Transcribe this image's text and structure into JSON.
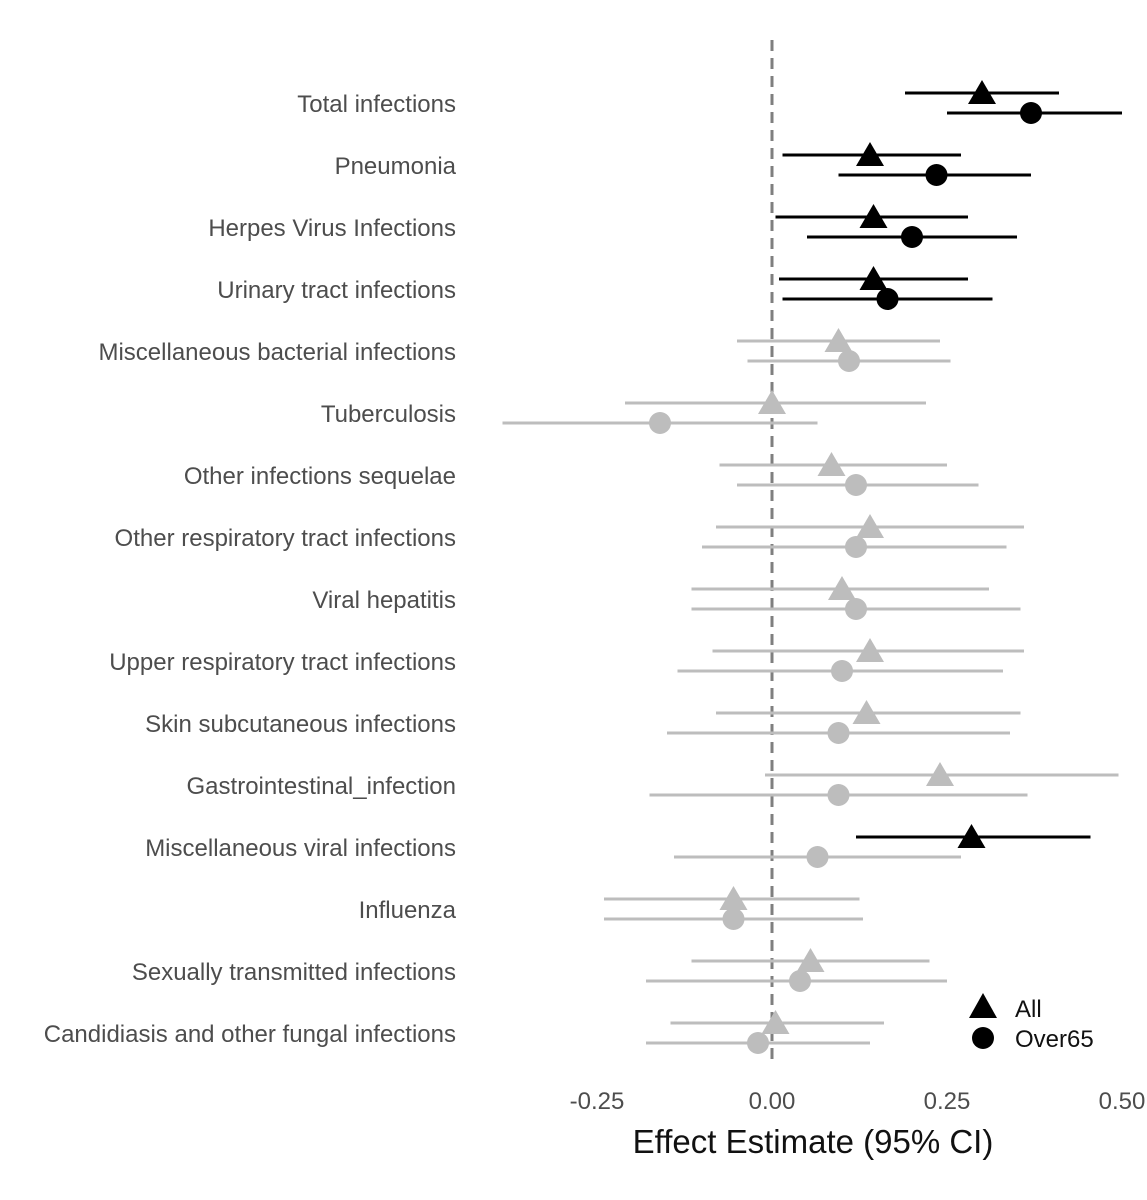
{
  "chart_data": {
    "type": "forest",
    "title": "",
    "xlabel": "Effect Estimate (95% CI)",
    "ylabel": "",
    "xlim": [
      -0.385,
      0.505
    ],
    "xticks": [
      -0.25,
      0.0,
      0.25,
      0.5
    ],
    "xtick_labels": [
      "-0.25",
      "0.00",
      "0.25",
      "0.50"
    ],
    "reference_line": 0,
    "grid": false,
    "legend_position": "bottom-right",
    "colors": {
      "significant": "#000000",
      "non_significant": "#bdbdbd",
      "reference_line": "#7f7f7f"
    },
    "series": [
      {
        "name": "All",
        "marker": "triangle"
      },
      {
        "name": "Over65",
        "marker": "circle"
      }
    ],
    "categories": [
      {
        "label": "Total infections",
        "All": {
          "estimate": 0.3,
          "lower": 0.19,
          "upper": 0.41,
          "significant": true
        },
        "Over65": {
          "estimate": 0.37,
          "lower": 0.25,
          "upper": 0.5,
          "significant": true
        }
      },
      {
        "label": "Pneumonia",
        "All": {
          "estimate": 0.14,
          "lower": 0.015,
          "upper": 0.27,
          "significant": true
        },
        "Over65": {
          "estimate": 0.235,
          "lower": 0.095,
          "upper": 0.37,
          "significant": true
        }
      },
      {
        "label": "Herpes Virus Infections",
        "All": {
          "estimate": 0.145,
          "lower": 0.005,
          "upper": 0.28,
          "significant": true
        },
        "Over65": {
          "estimate": 0.2,
          "lower": 0.05,
          "upper": 0.35,
          "significant": true
        }
      },
      {
        "label": "Urinary tract infections",
        "All": {
          "estimate": 0.145,
          "lower": 0.01,
          "upper": 0.28,
          "significant": true
        },
        "Over65": {
          "estimate": 0.165,
          "lower": 0.015,
          "upper": 0.315,
          "significant": true
        }
      },
      {
        "label": "Miscellaneous bacterial infections",
        "All": {
          "estimate": 0.095,
          "lower": -0.05,
          "upper": 0.24,
          "significant": false
        },
        "Over65": {
          "estimate": 0.11,
          "lower": -0.035,
          "upper": 0.255,
          "significant": false
        }
      },
      {
        "label": "Tuberculosis",
        "All": {
          "estimate": 0.0,
          "lower": -0.21,
          "upper": 0.22,
          "significant": false
        },
        "Over65": {
          "estimate": -0.16,
          "lower": -0.385,
          "upper": 0.065,
          "significant": false
        }
      },
      {
        "label": "Other infections sequelae",
        "All": {
          "estimate": 0.085,
          "lower": -0.075,
          "upper": 0.25,
          "significant": false
        },
        "Over65": {
          "estimate": 0.12,
          "lower": -0.05,
          "upper": 0.295,
          "significant": false
        }
      },
      {
        "label": "Other respiratory tract infections",
        "All": {
          "estimate": 0.14,
          "lower": -0.08,
          "upper": 0.36,
          "significant": false
        },
        "Over65": {
          "estimate": 0.12,
          "lower": -0.1,
          "upper": 0.335,
          "significant": false
        }
      },
      {
        "label": "Viral hepatitis",
        "All": {
          "estimate": 0.1,
          "lower": -0.115,
          "upper": 0.31,
          "significant": false
        },
        "Over65": {
          "estimate": 0.12,
          "lower": -0.115,
          "upper": 0.355,
          "significant": false
        }
      },
      {
        "label": "Upper respiratory tract infections",
        "All": {
          "estimate": 0.14,
          "lower": -0.085,
          "upper": 0.36,
          "significant": false
        },
        "Over65": {
          "estimate": 0.1,
          "lower": -0.135,
          "upper": 0.33,
          "significant": false
        }
      },
      {
        "label": "Skin subcutaneous infections",
        "All": {
          "estimate": 0.135,
          "lower": -0.08,
          "upper": 0.355,
          "significant": false
        },
        "Over65": {
          "estimate": 0.095,
          "lower": -0.15,
          "upper": 0.34,
          "significant": false
        }
      },
      {
        "label": "Gastrointestinal_infection",
        "All": {
          "estimate": 0.24,
          "lower": -0.01,
          "upper": 0.495,
          "significant": false
        },
        "Over65": {
          "estimate": 0.095,
          "lower": -0.175,
          "upper": 0.365,
          "significant": false
        }
      },
      {
        "label": "Miscellaneous viral infections",
        "All": {
          "estimate": 0.285,
          "lower": 0.12,
          "upper": 0.455,
          "significant": true
        },
        "Over65": {
          "estimate": 0.065,
          "lower": -0.14,
          "upper": 0.27,
          "significant": false
        }
      },
      {
        "label": "Influenza",
        "All": {
          "estimate": -0.055,
          "lower": -0.24,
          "upper": 0.125,
          "significant": false
        },
        "Over65": {
          "estimate": -0.055,
          "lower": -0.24,
          "upper": 0.13,
          "significant": false
        }
      },
      {
        "label": "Sexually transmitted infections",
        "All": {
          "estimate": 0.055,
          "lower": -0.115,
          "upper": 0.225,
          "significant": false
        },
        "Over65": {
          "estimate": 0.04,
          "lower": -0.18,
          "upper": 0.25,
          "significant": false
        }
      },
      {
        "label": "Candidiasis and other fungal infections",
        "All": {
          "estimate": 0.005,
          "lower": -0.145,
          "upper": 0.16,
          "significant": false
        },
        "Over65": {
          "estimate": -0.02,
          "lower": -0.18,
          "upper": 0.14,
          "significant": false
        }
      }
    ]
  }
}
